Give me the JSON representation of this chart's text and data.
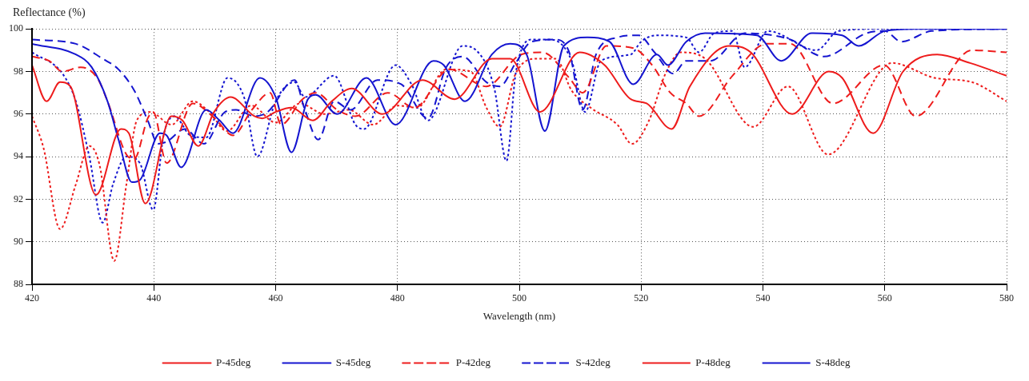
{
  "chart_data": {
    "type": "line",
    "xlabel": "Wavelength (nm)",
    "ylabel": "Reflectance (%)",
    "xlim": [
      420,
      580
    ],
    "xticks": [
      420,
      440,
      460,
      480,
      500,
      520,
      540,
      560,
      580
    ],
    "ylim": [
      88,
      100
    ],
    "yticks": [
      88,
      90,
      92,
      94,
      96,
      98,
      100
    ],
    "grid": true,
    "legend": "bottom",
    "marker": "none",
    "series": [
      {
        "name": "P-45deg",
        "color": "#ee1c1c",
        "line_style": "solid",
        "x": [
          420,
          422.4,
          424.6,
          426.3,
          430.5,
          434.6,
          435.9,
          438.6,
          442.9,
          444.7,
          447.3,
          449.9,
          452.6,
          456.5,
          457.8,
          460,
          462.6,
          466.1,
          469.2,
          472.5,
          477.5,
          484.1,
          489.4,
          495.5,
          498.5,
          503.4,
          509.9,
          514,
          518.3,
          520.9,
          525,
          528,
          534.4,
          538,
          544.8,
          550.8,
          553,
          558.1,
          563,
          568.6,
          574,
          580
        ],
        "values": [
          98.3,
          96.6,
          97.5,
          97.3,
          92.2,
          95.3,
          95.1,
          91.8,
          95.9,
          95.7,
          94.5,
          96.1,
          96.8,
          95.9,
          95.8,
          96.1,
          96.3,
          95.7,
          96.6,
          97.2,
          96.0,
          97.6,
          96.7,
          98.6,
          98.6,
          96.1,
          98.9,
          98.3,
          96.7,
          96.5,
          95.3,
          97.3,
          99.2,
          98.9,
          96.0,
          98.0,
          97.7,
          95.1,
          98.0,
          98.8,
          98.4,
          97.8
        ]
      },
      {
        "name": "S-45deg",
        "color": "#1515d0",
        "line_style": "solid",
        "x": [
          420,
          427.2,
          429.8,
          432.4,
          434.2,
          436.4,
          437.7,
          441,
          442.1,
          444.5,
          448.6,
          450.8,
          453,
          457.4,
          460,
          462.6,
          465.3,
          466.6,
          470.1,
          474.9,
          479.7,
          485.9,
          487.6,
          491.1,
          495.5,
          498.5,
          501.2,
          504.2,
          507.3,
          511.2,
          514.8,
          518.7,
          522.6,
          524.4,
          527.4,
          530.5,
          539,
          543,
          548,
          553,
          555.7,
          560,
          565,
          580
        ],
        "values": [
          99.3,
          98.8,
          98.2,
          96.6,
          94.8,
          92.8,
          92.9,
          95.1,
          95.0,
          93.5,
          96.2,
          95.7,
          95.1,
          97.7,
          96.8,
          94.2,
          96.7,
          96.9,
          96.0,
          97.7,
          95.5,
          98.5,
          98.3,
          96.6,
          98.8,
          99.3,
          98.8,
          95.2,
          99.2,
          99.6,
          99.4,
          97.4,
          98.8,
          98.3,
          99.4,
          99.8,
          99.7,
          98.5,
          99.8,
          99.7,
          99.2,
          99.9,
          100,
          100
        ]
      },
      {
        "name": "P-42deg",
        "color": "#ee1c1c",
        "line_style": "dashed",
        "x": [
          420,
          422.8,
          425,
          428,
          430.7,
          432.4,
          435.5,
          436.8,
          439,
          439.9,
          442.1,
          446.4,
          450,
          453,
          456.1,
          459.1,
          460.9,
          464.4,
          466.6,
          470.1,
          473.1,
          478.4,
          482.8,
          488.5,
          494.6,
          500.3,
          503.8,
          508.2,
          510.4,
          514.3,
          518.7,
          521.8,
          524.8,
          527.4,
          529.5,
          535,
          540.6,
          544.5,
          551.5,
          559.9,
          565.1,
          574.3,
          580
        ],
        "values": [
          98.7,
          98.5,
          98.0,
          98.2,
          97.7,
          96.6,
          94.1,
          93.9,
          95.8,
          96.1,
          93.7,
          96.5,
          95.8,
          95.0,
          96.2,
          97.0,
          95.5,
          96.7,
          97.0,
          96.2,
          95.9,
          97.0,
          96.3,
          98.1,
          97.3,
          98.8,
          98.9,
          97.7,
          97.0,
          99.2,
          99.1,
          98.3,
          97.0,
          96.5,
          95.9,
          97.8,
          99.3,
          99.3,
          96.5,
          98.3,
          95.9,
          99.0,
          98.9
        ]
      },
      {
        "name": "S-42deg",
        "color": "#1515d0",
        "line_style": "dashed",
        "x": [
          420,
          427.2,
          431.6,
          434.2,
          436.8,
          439,
          440.7,
          442.1,
          445.1,
          448.2,
          451.7,
          453.5,
          456.5,
          458.7,
          463.1,
          464.8,
          467,
          469.6,
          472.3,
          476.7,
          480.6,
          485,
          488,
          490.7,
          494.6,
          496.8,
          499.4,
          502,
          506,
          508.2,
          510.4,
          512.6,
          516.1,
          519.6,
          522.2,
          525.3,
          527.4,
          531.4,
          537,
          544.5,
          550,
          557,
          560,
          562.7,
          567.7,
          580
        ],
        "values": [
          99.5,
          99.3,
          98.6,
          98.1,
          97.1,
          95.7,
          94.6,
          94.7,
          95.3,
          94.6,
          96.1,
          96.2,
          95.9,
          96.1,
          97.6,
          96.2,
          94.8,
          96.6,
          96.2,
          97.6,
          97.4,
          95.8,
          98.2,
          98.7,
          97.5,
          97.3,
          98.4,
          99.4,
          99.5,
          98.9,
          96.2,
          98.8,
          99.6,
          99.7,
          98.9,
          97.9,
          98.5,
          98.5,
          99.8,
          99.5,
          98.7,
          99.8,
          99.9,
          99.4,
          99.9,
          100
        ]
      },
      {
        "name": "P-48deg",
        "color": "#ee1c1c",
        "line_style": "dotted",
        "x": [
          420,
          421.9,
          424.6,
          427.2,
          429.4,
          431.1,
          433.5,
          435.5,
          437.2,
          439.4,
          442.9,
          446.4,
          449.1,
          452,
          456,
          460,
          464,
          468,
          472,
          476,
          480,
          483.2,
          488,
          492,
          494.6,
          496.8,
          499.4,
          503,
          506,
          508.6,
          511.7,
          516.1,
          518.5,
          521.3,
          524,
          526.5,
          530.5,
          538.4,
          544.1,
          550.7,
          561.2,
          568.2,
          574.3,
          580
        ],
        "values": [
          95.9,
          94.4,
          90.6,
          92.7,
          94.5,
          93.6,
          89.1,
          92.7,
          95.7,
          96.1,
          95.5,
          96.6,
          96.1,
          95.2,
          96.4,
          95.6,
          96.5,
          96.0,
          96.2,
          95.5,
          96.4,
          96.3,
          98.1,
          98.0,
          96.3,
          95.4,
          97.9,
          98.6,
          98.6,
          97.1,
          96.3,
          95.5,
          94.6,
          95.7,
          97.9,
          98.9,
          98.6,
          95.4,
          97.3,
          94.1,
          98.4,
          97.7,
          97.5,
          96.6
        ]
      },
      {
        "name": "S-48deg",
        "color": "#1515d0",
        "line_style": "dotted",
        "x": [
          420,
          425,
          427.2,
          429.4,
          431.6,
          433.3,
          435.5,
          437.7,
          439.9,
          441.6,
          443.4,
          446,
          448.6,
          452.1,
          454.8,
          457,
          460,
          463.1,
          464.8,
          469.6,
          473.1,
          474.5,
          479.7,
          482.3,
          485,
          490.7,
          492.9,
          495.9,
          497.9,
          499.4,
          502,
          505.1,
          508.6,
          510.8,
          513.4,
          518.3,
          520,
          522.6,
          527.4,
          529.5,
          532,
          535,
          537,
          540.8,
          548.8,
          552.4,
          560,
          580
        ],
        "values": [
          98.9,
          97.9,
          96.6,
          94.0,
          90.9,
          92.7,
          94.0,
          93.7,
          91.5,
          95.0,
          95.9,
          95.0,
          94.9,
          97.7,
          96.8,
          94.0,
          96.6,
          97.5,
          96.8,
          97.8,
          95.5,
          95.3,
          98.3,
          97.4,
          95.7,
          99.2,
          99.0,
          97.2,
          93.8,
          97.9,
          99.5,
          99.5,
          98.5,
          96.1,
          98.5,
          98.8,
          99.4,
          99.7,
          99.6,
          98.9,
          99.8,
          99.9,
          98.2,
          99.9,
          99.0,
          99.9,
          100,
          100
        ]
      }
    ]
  }
}
